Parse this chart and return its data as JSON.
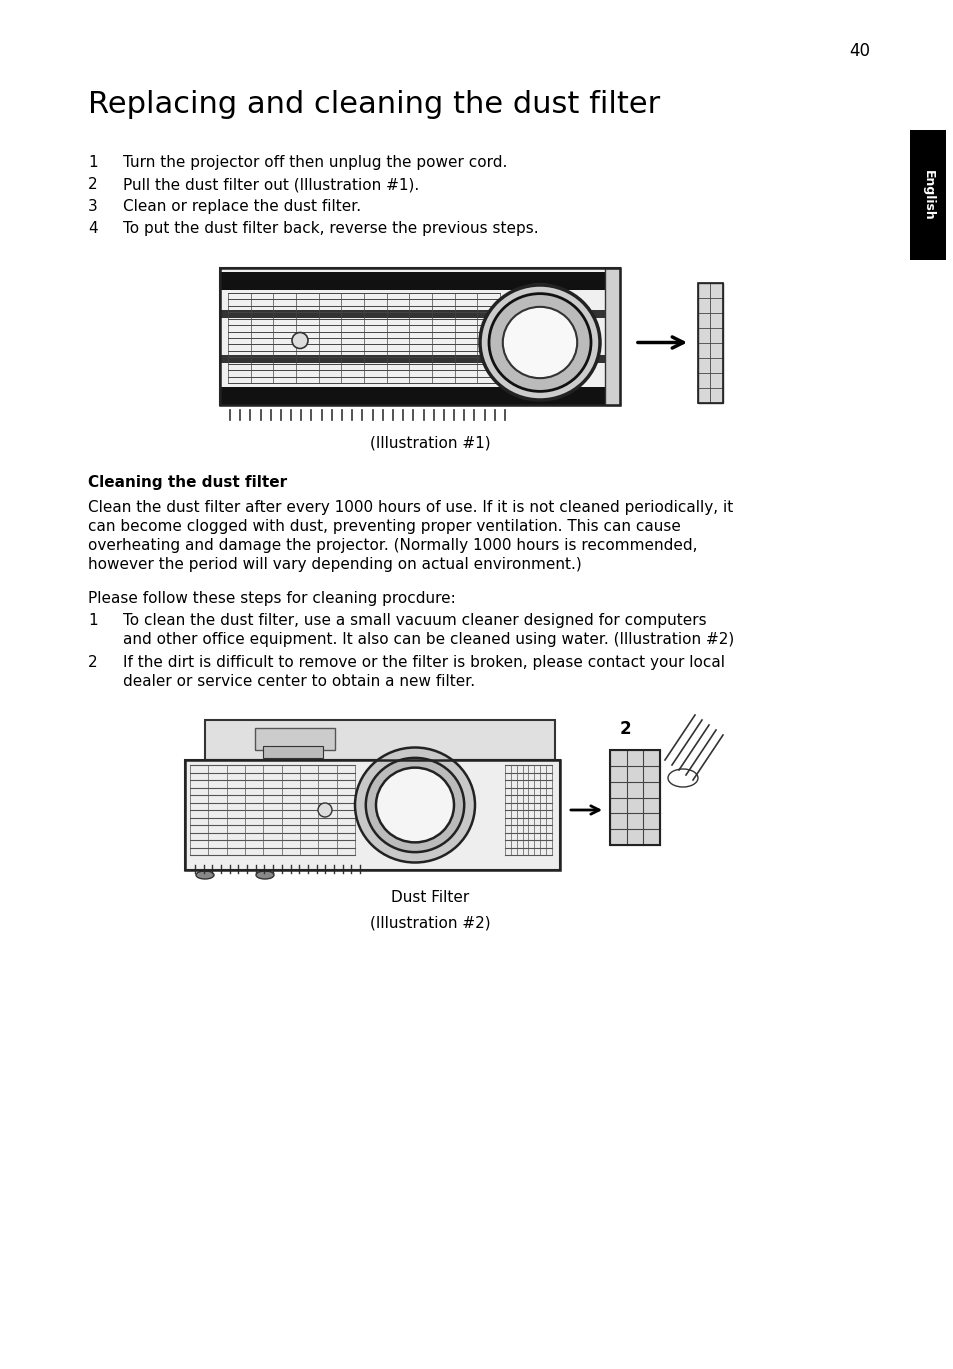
{
  "page_number": "40",
  "title": "Replacing and cleaning the dust filter",
  "steps": [
    "Turn the projector off then unplug the power cord.",
    "Pull the dust filter out (Illustration #1).",
    "Clean or replace the dust filter.",
    "To put the dust filter back, reverse the previous steps."
  ],
  "illustration1_caption": "(Illustration #1)",
  "section_title": "Cleaning the dust filter",
  "body_text_lines": [
    "Clean the dust filter after every 1000 hours of use. If it is not cleaned periodically, it",
    "can become clogged with dust, preventing proper ventilation. This can cause",
    "overheating and damage the projector. (Normally 1000 hours is recommended,",
    "however the period will vary depending on actual environment.)"
  ],
  "steps2_intro": "Please follow these steps for cleaning procdure:",
  "steps2_1_lines": [
    "To clean the dust filter, use a small vacuum cleaner designed for computers",
    "and other office equipment. It also can be cleaned using water. (Illustration #2)"
  ],
  "steps2_2_lines": [
    "If the dirt is difficult to remove or the filter is broken, please contact your local",
    "dealer or service center to obtain a new filter."
  ],
  "illustration2_caption1": "Dust Filter",
  "illustration2_caption2": "(Illustration #2)",
  "tab_label": "English",
  "bg_color": "#ffffff",
  "text_color": "#000000",
  "tab_bg": "#000000",
  "tab_text": "#ffffff",
  "font_size_title": 22,
  "font_size_body": 11,
  "font_size_page": 12,
  "font_size_bold": 11
}
